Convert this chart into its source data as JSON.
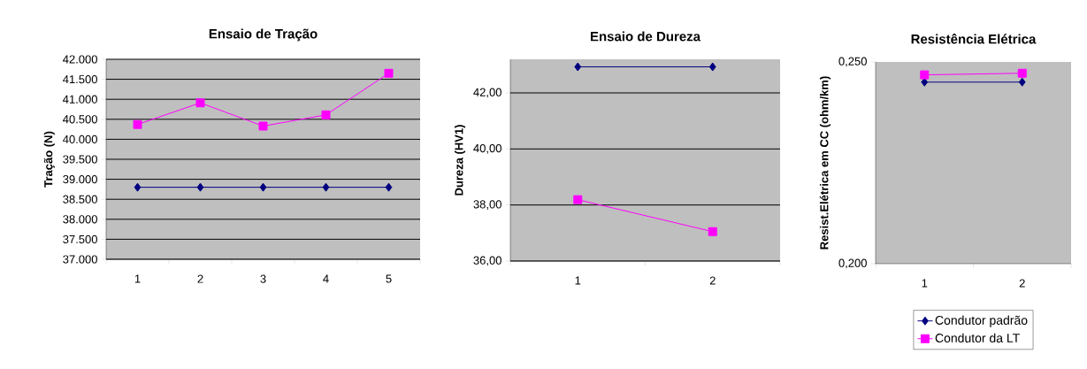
{
  "chart_data": [
    {
      "type": "line",
      "title": "Ensaio de Tração",
      "ylabel": "Tração (N)",
      "categories": [
        "1",
        "2",
        "3",
        "4",
        "5"
      ],
      "ylim": [
        37000,
        42000
      ],
      "yticks": [
        {
          "value": 37000,
          "label": "37.000"
        },
        {
          "value": 37500,
          "label": "37.500"
        },
        {
          "value": 38000,
          "label": "38.000"
        },
        {
          "value": 38500,
          "label": "38.500"
        },
        {
          "value": 39000,
          "label": "39.000"
        },
        {
          "value": 39500,
          "label": "39.500"
        },
        {
          "value": 40000,
          "label": "40.000"
        },
        {
          "value": 40500,
          "label": "40.500"
        },
        {
          "value": 41000,
          "label": "41.000"
        },
        {
          "value": 41500,
          "label": "41.500"
        },
        {
          "value": 42000,
          "label": "42.000"
        }
      ],
      "grid": "y",
      "series": [
        {
          "color": "#000080",
          "marker": "diamond",
          "values": [
            38800,
            38800,
            38800,
            38800,
            38800
          ]
        },
        {
          "color": "#ff00ff",
          "marker": "square",
          "values": [
            40370,
            40910,
            40330,
            40610,
            41650
          ]
        }
      ]
    },
    {
      "type": "line",
      "title": "Ensaio de Dureza",
      "ylabel": "Dureza (HV1)",
      "categories": [
        "1",
        "2"
      ],
      "ylim": [
        36,
        43.2
      ],
      "yticks": [
        {
          "value": 36,
          "label": "36,00"
        },
        {
          "value": 38,
          "label": "38,00"
        },
        {
          "value": 40,
          "label": "40,00"
        },
        {
          "value": 42,
          "label": "42,00"
        }
      ],
      "grid": "y",
      "series": [
        {
          "color": "#000080",
          "marker": "diamond",
          "values": [
            42.93,
            42.93
          ]
        },
        {
          "color": "#ff00ff",
          "marker": "square",
          "values": [
            38.19,
            37.05
          ]
        }
      ]
    },
    {
      "type": "line",
      "title": "Resistência Elétrica",
      "ylabel": "Resist.Elétrica em CC (ohm/km)",
      "categories": [
        "1",
        "2"
      ],
      "ylim": [
        0.2,
        0.25
      ],
      "yticks": [
        {
          "value": 0.2,
          "label": "0,200"
        },
        {
          "value": 0.25,
          "label": "0,250"
        }
      ],
      "legend": "bottom",
      "series": [
        {
          "name": "Condutor padrão",
          "color": "#000080",
          "marker": "diamond",
          "values": [
            0.245,
            0.245
          ]
        },
        {
          "name": "Condutor da LT",
          "color": "#ff00ff",
          "marker": "square",
          "values": [
            0.2468,
            0.2472
          ]
        }
      ]
    }
  ]
}
